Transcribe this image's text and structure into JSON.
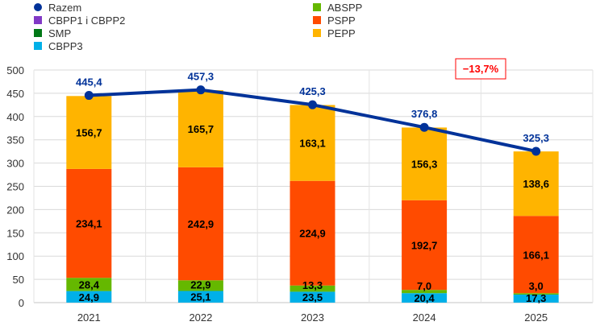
{
  "chart_data": {
    "type": "bar",
    "stacked": true,
    "categories": [
      "2021",
      "2022",
      "2023",
      "2024",
      "2025"
    ],
    "series": [
      {
        "name": "CBPP3",
        "color": "#00B0E8",
        "values": [
          24.9,
          25.1,
          23.5,
          20.4,
          17.3
        ],
        "labels": [
          "24,9",
          "25,1",
          "23,5",
          "20,4",
          "17,3"
        ]
      },
      {
        "name": "ABSPP",
        "color": "#65B800",
        "values": [
          28.4,
          22.9,
          13.3,
          7.0,
          3.0
        ],
        "labels": [
          "28,4",
          "22,9",
          "13,3",
          "7,0",
          "3,0"
        ]
      },
      {
        "name": "PSPP",
        "color": "#FF4B00",
        "values": [
          234.1,
          242.9,
          224.9,
          192.7,
          166.1
        ],
        "labels": [
          "234,1",
          "242,9",
          "224,9",
          "192,7",
          "166,1"
        ]
      },
      {
        "name": "PEPP",
        "color": "#FFB400",
        "values": [
          156.7,
          165.7,
          163.1,
          156.3,
          138.6
        ],
        "labels": [
          "156,7",
          "165,7",
          "163,1",
          "156,3",
          "138,6"
        ]
      }
    ],
    "line": {
      "name": "Razem",
      "color": "#003299",
      "values": [
        445.4,
        457.3,
        425.3,
        376.8,
        325.3
      ],
      "labels": [
        "445,4",
        "457,3",
        "425,3",
        "376,8",
        "325,3"
      ]
    },
    "legend": [
      {
        "name": "Razem",
        "color": "#003299",
        "shape": "circle"
      },
      {
        "name": "CBPP1 i CBPP2",
        "color": "#8139C6",
        "shape": "square"
      },
      {
        "name": "SMP",
        "color": "#007816",
        "shape": "square"
      },
      {
        "name": "CBPP3",
        "color": "#00B0E8",
        "shape": "square"
      },
      {
        "name": "ABSPP",
        "color": "#65B800",
        "shape": "square"
      },
      {
        "name": "PSPP",
        "color": "#FF4B00",
        "shape": "square"
      },
      {
        "name": "PEPP",
        "color": "#FFB400",
        "shape": "square"
      }
    ],
    "legend_position": "top",
    "annotation": {
      "text": "−13,7%",
      "color": "#FF0000"
    },
    "ylim": [
      0,
      500
    ],
    "yticks": [
      0,
      50,
      100,
      150,
      200,
      250,
      300,
      350,
      400,
      450,
      500
    ],
    "grid": true
  }
}
